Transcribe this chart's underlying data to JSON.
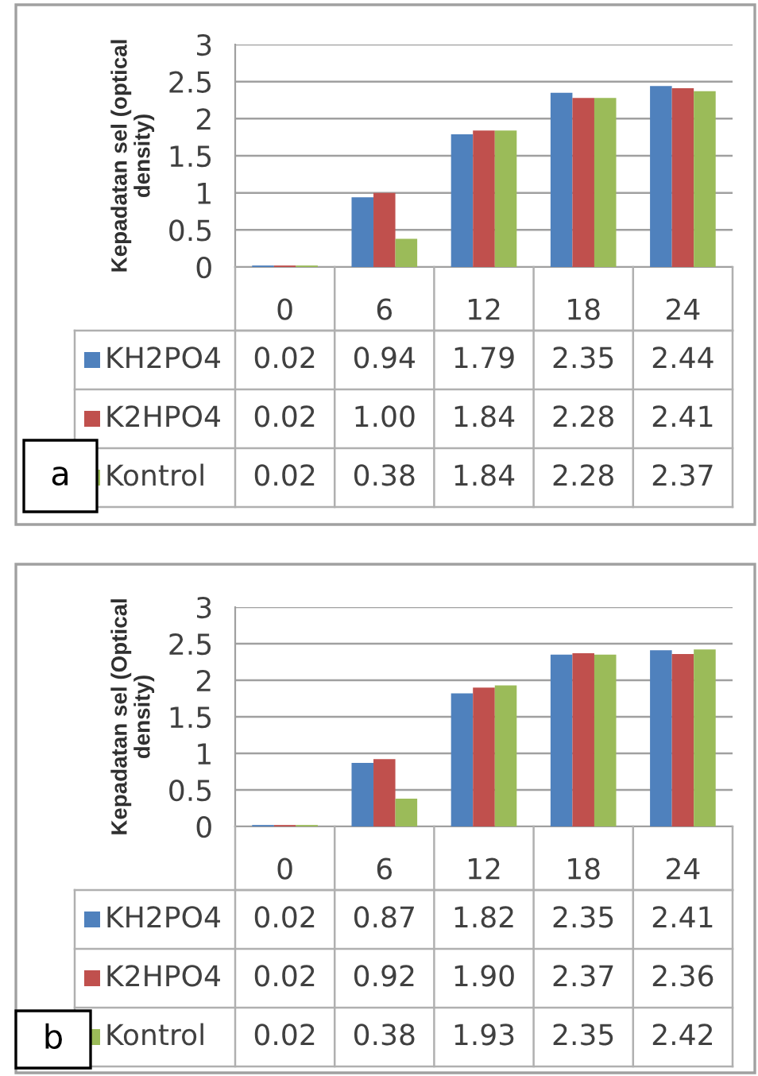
{
  "chart_data": [
    {
      "type": "bar",
      "ylabel": "Kepadatan sel (optical density)",
      "categories": [
        "0",
        "6",
        "12",
        "18",
        "24"
      ],
      "ylim": [
        0,
        3
      ],
      "yticks": [
        0,
        0.5,
        1,
        1.5,
        2,
        2.5,
        3
      ],
      "grid": "y",
      "legend": "bottom",
      "annotations": [
        "a"
      ],
      "series": [
        {
          "name": "KH2PO4",
          "color": "#4f81bd",
          "values": [
            0.02,
            0.94,
            1.79,
            2.35,
            2.44
          ],
          "value_labels": [
            "0.02",
            "0.94",
            "1.79",
            "2.35",
            "2.44"
          ]
        },
        {
          "name": "K2HPO4",
          "color": "#c0504d",
          "values": [
            0.02,
            1.0,
            1.84,
            2.28,
            2.41
          ],
          "value_labels": [
            "0.02",
            "1.00",
            "1.84",
            "2.28",
            "2.41"
          ]
        },
        {
          "name": "Kontrol",
          "color": "#9bbb59",
          "values": [
            0.02,
            0.38,
            1.84,
            2.28,
            2.37
          ],
          "value_labels": [
            "0.02",
            "0.38",
            "1.84",
            "2.28",
            "2.37"
          ]
        }
      ]
    },
    {
      "type": "bar",
      "ylabel": "Kepadatan sel (Optical density)",
      "categories": [
        "0",
        "6",
        "12",
        "18",
        "24"
      ],
      "ylim": [
        0,
        3
      ],
      "yticks": [
        0,
        0.5,
        1,
        1.5,
        2,
        2.5,
        3
      ],
      "grid": "y",
      "legend": "bottom",
      "annotations": [
        "b"
      ],
      "series": [
        {
          "name": "KH2PO4",
          "color": "#4f81bd",
          "values": [
            0.02,
            0.87,
            1.82,
            2.35,
            2.41
          ],
          "value_labels": [
            "0.02",
            "0.87",
            "1.82",
            "2.35",
            "2.41"
          ]
        },
        {
          "name": "K2HPO4",
          "color": "#c0504d",
          "values": [
            0.02,
            0.92,
            1.9,
            2.37,
            2.36
          ],
          "value_labels": [
            "0.02",
            "0.92",
            "1.90",
            "2.37",
            "2.36"
          ]
        },
        {
          "name": "Kontrol",
          "color": "#9bbb59",
          "values": [
            0.02,
            0.38,
            1.93,
            2.35,
            2.42
          ],
          "value_labels": [
            "0.02",
            "0.38",
            "1.93",
            "2.35",
            "2.42"
          ]
        }
      ]
    }
  ]
}
